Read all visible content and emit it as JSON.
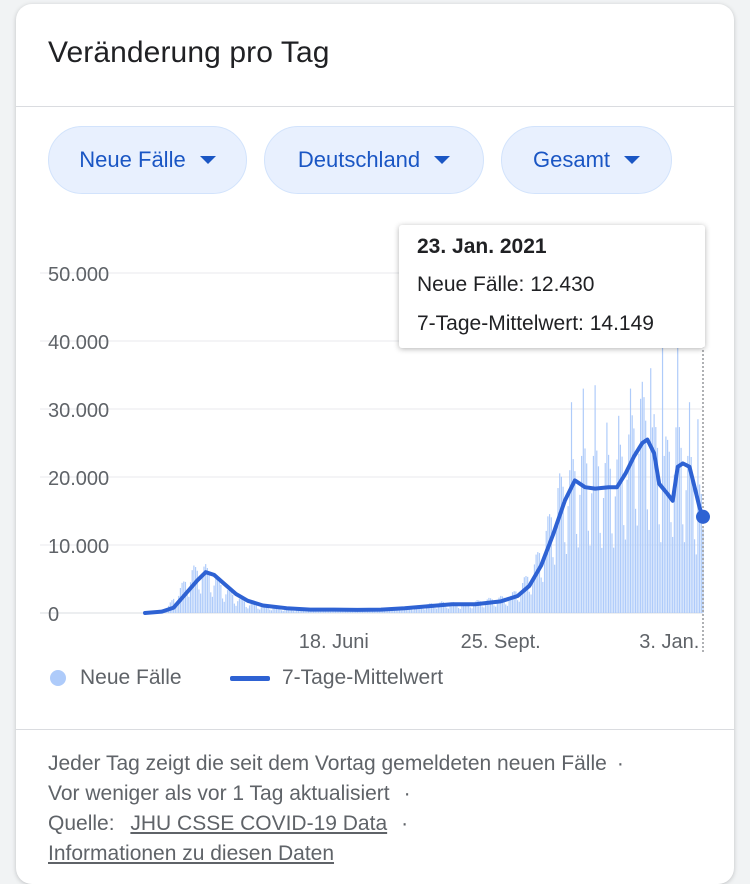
{
  "card": {
    "title": "Veränderung pro Tag"
  },
  "filters": [
    {
      "label": "Neue Fälle"
    },
    {
      "label": "Deutschland"
    },
    {
      "label": "Gesamt"
    }
  ],
  "tooltip": {
    "date": "23. Jan. 2021",
    "line1": "Neue Fälle: 12.430",
    "line2": "7-Tage-Mittelwert: 14.149"
  },
  "legend": {
    "bars_label": "Neue Fälle",
    "line_label": "7-Tage-Mittelwert"
  },
  "footer": {
    "line1": "Jeder Tag zeigt die seit dem Vortag gemeldeten neuen Fälle",
    "line2": "Vor weniger als vor 1 Tag aktualisiert",
    "source_prefix": "Quelle:",
    "source_link": "JHU CSSE COVID-19 Data",
    "info_link": "Informationen zu diesen Daten",
    "separator": "·"
  },
  "colors": {
    "bars": "#aecbfa",
    "line": "#2e62d3",
    "chip_text": "#1a56c4",
    "grid": "#e8eaed"
  },
  "chart_data": {
    "type": "bar",
    "title": "",
    "ylim": [
      0,
      50000
    ],
    "yticks": [
      {
        "value": 0,
        "label": "0"
      },
      {
        "value": 10000,
        "label": "10.000"
      },
      {
        "value": 20000,
        "label": "20.000"
      },
      {
        "value": 30000,
        "label": "30.000"
      },
      {
        "value": 40000,
        "label": "40.000"
      },
      {
        "value": 50000,
        "label": "50.000"
      }
    ],
    "xlim": [
      "2020-02-27",
      "2021-01-23"
    ],
    "xticks": [
      {
        "date": "2020-06-18",
        "label": "18. Juni"
      },
      {
        "date": "2020-09-25",
        "label": "25. Sept."
      },
      {
        "date": "2021-01-03",
        "label": "3. Jan."
      }
    ],
    "bar_anchors": [
      [
        "2020-02-27",
        0
      ],
      [
        "2020-03-05",
        200
      ],
      [
        "2020-03-12",
        1000
      ],
      [
        "2020-03-19",
        3500
      ],
      [
        "2020-03-26",
        6000
      ],
      [
        "2020-04-02",
        6500
      ],
      [
        "2020-04-09",
        4800
      ],
      [
        "2020-04-16",
        3200
      ],
      [
        "2020-04-23",
        2000
      ],
      [
        "2020-04-30",
        1300
      ],
      [
        "2020-05-14",
        800
      ],
      [
        "2020-05-28",
        500
      ],
      [
        "2020-06-11",
        450
      ],
      [
        "2020-06-25",
        500
      ],
      [
        "2020-07-09",
        450
      ],
      [
        "2020-07-23",
        700
      ],
      [
        "2020-08-06",
        950
      ],
      [
        "2020-08-20",
        1500
      ],
      [
        "2020-09-03",
        1300
      ],
      [
        "2020-09-17",
        1900
      ],
      [
        "2020-10-01",
        2400
      ],
      [
        "2020-10-08",
        4200
      ],
      [
        "2020-10-15",
        6800
      ],
      [
        "2020-10-22",
        11500
      ],
      [
        "2020-10-29",
        17500
      ],
      [
        "2020-11-05",
        20000
      ],
      [
        "2020-11-12",
        22000
      ],
      [
        "2020-11-19",
        22000
      ],
      [
        "2020-11-26",
        21000
      ],
      [
        "2020-12-03",
        21500
      ],
      [
        "2020-12-10",
        25000
      ],
      [
        "2020-12-17",
        30000
      ],
      [
        "2020-12-24",
        26000
      ],
      [
        "2020-12-31",
        22000
      ],
      [
        "2021-01-07",
        26000
      ],
      [
        "2021-01-14",
        22000
      ],
      [
        "2021-01-21",
        18000
      ],
      [
        "2021-01-23",
        12430
      ]
    ],
    "bar_peaks": [
      [
        "2020-11-06",
        31000
      ],
      [
        "2020-11-13",
        33000
      ],
      [
        "2020-11-20",
        33500
      ],
      [
        "2020-11-27",
        28000
      ],
      [
        "2020-12-04",
        29000
      ],
      [
        "2020-12-11",
        33000
      ],
      [
        "2020-12-18",
        34000
      ],
      [
        "2020-12-23",
        36000
      ],
      [
        "2020-12-30",
        40000
      ],
      [
        "2021-01-08",
        40000
      ],
      [
        "2021-01-15",
        31000
      ],
      [
        "2021-01-20",
        28500
      ]
    ],
    "series": [
      {
        "name": "7-Tage-Mittelwert",
        "type": "line",
        "points": [
          [
            "2020-02-27",
            0
          ],
          [
            "2020-03-08",
            200
          ],
          [
            "2020-03-15",
            800
          ],
          [
            "2020-03-22",
            2800
          ],
          [
            "2020-03-29",
            4800
          ],
          [
            "2020-04-03",
            6000
          ],
          [
            "2020-04-08",
            5600
          ],
          [
            "2020-04-14",
            4300
          ],
          [
            "2020-04-21",
            2800
          ],
          [
            "2020-04-28",
            1800
          ],
          [
            "2020-05-07",
            1100
          ],
          [
            "2020-05-21",
            700
          ],
          [
            "2020-06-04",
            500
          ],
          [
            "2020-06-18",
            500
          ],
          [
            "2020-07-02",
            450
          ],
          [
            "2020-07-16",
            500
          ],
          [
            "2020-07-30",
            700
          ],
          [
            "2020-08-13",
            1000
          ],
          [
            "2020-08-27",
            1300
          ],
          [
            "2020-09-10",
            1300
          ],
          [
            "2020-09-25",
            1700
          ],
          [
            "2020-10-05",
            2500
          ],
          [
            "2020-10-12",
            4000
          ],
          [
            "2020-10-19",
            7000
          ],
          [
            "2020-10-26",
            11500
          ],
          [
            "2020-11-02",
            16500
          ],
          [
            "2020-11-08",
            19500
          ],
          [
            "2020-11-14",
            18500
          ],
          [
            "2020-11-20",
            18300
          ],
          [
            "2020-11-28",
            18500
          ],
          [
            "2020-12-03",
            18500
          ],
          [
            "2020-12-08",
            20500
          ],
          [
            "2020-12-13",
            23000
          ],
          [
            "2020-12-18",
            25000
          ],
          [
            "2020-12-21",
            25500
          ],
          [
            "2020-12-25",
            23500
          ],
          [
            "2020-12-28",
            19000
          ],
          [
            "2021-01-02",
            17500
          ],
          [
            "2021-01-05",
            16500
          ],
          [
            "2021-01-08",
            21500
          ],
          [
            "2021-01-11",
            22000
          ],
          [
            "2021-01-15",
            21500
          ],
          [
            "2021-01-19",
            17500
          ],
          [
            "2021-01-21",
            15500
          ],
          [
            "2021-01-23",
            14149
          ]
        ]
      }
    ],
    "highlight": {
      "date": "2021-01-23",
      "value": 14149
    },
    "grid": true,
    "legend_position": "bottom"
  }
}
